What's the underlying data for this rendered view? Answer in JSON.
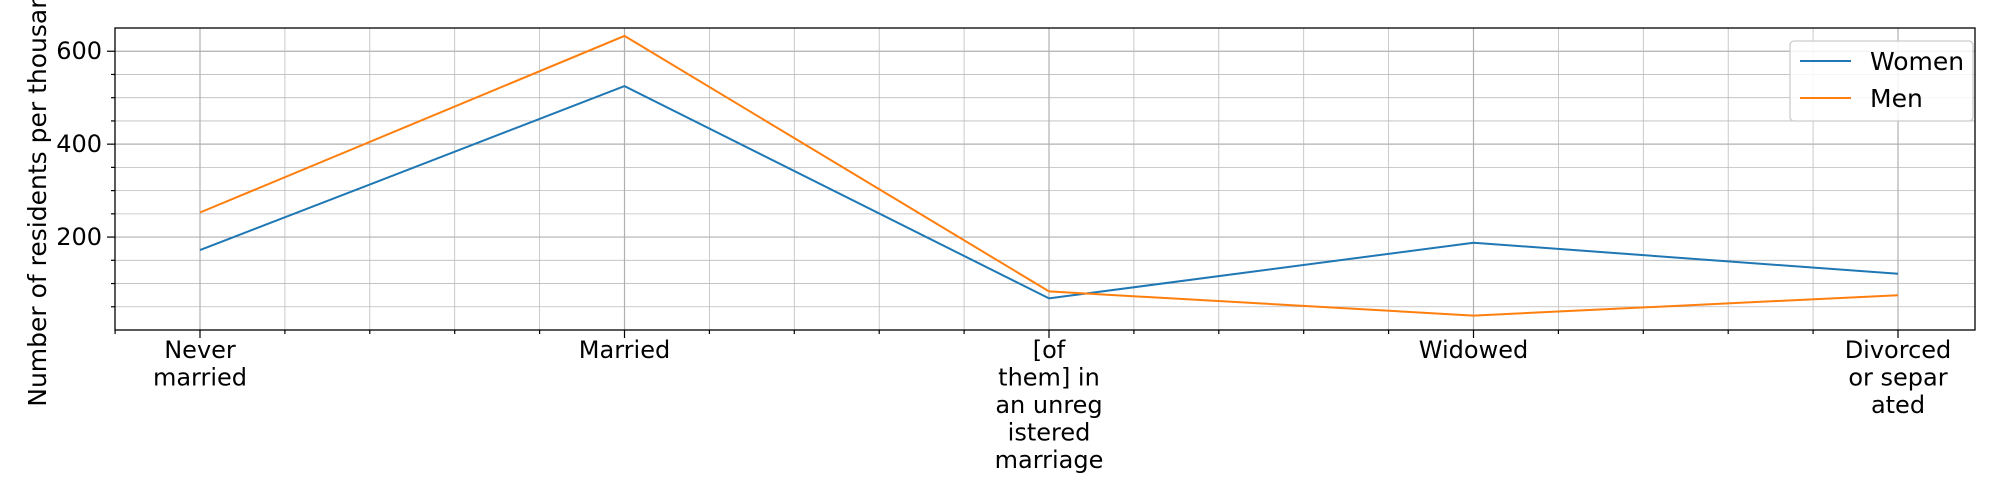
{
  "chart_data": {
    "type": "line",
    "title": "",
    "xlabel": "",
    "ylabel": "Number of residents per thousand p",
    "categories": [
      [
        "Never",
        "married"
      ],
      [
        "Married"
      ],
      [
        "[of",
        "them] in",
        "an unreg",
        "istered",
        "marriage"
      ],
      [
        "Widowed"
      ],
      [
        "Divorced",
        "or separ",
        "ated"
      ]
    ],
    "ylim": [
      0,
      650
    ],
    "y_major_ticks": [
      200,
      400,
      600
    ],
    "y_minor_step": 50,
    "x_minor_per_major": 5,
    "grid": true,
    "legend_position": "top-right",
    "series": [
      {
        "name": "Women",
        "color": "#1f77b4",
        "values": [
          172,
          525,
          68,
          188,
          121
        ]
      },
      {
        "name": "Men",
        "color": "#ff7f0e",
        "values": [
          253,
          633,
          83,
          31,
          75
        ]
      }
    ]
  }
}
